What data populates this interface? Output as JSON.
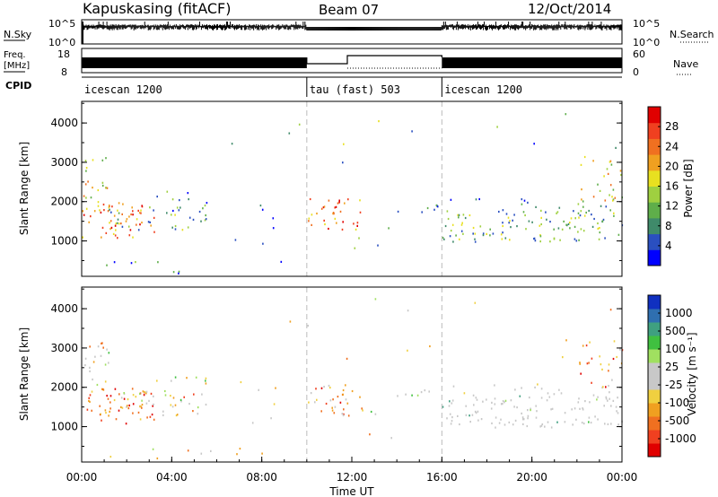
{
  "header": {
    "station": "Kapuskasing (fitACF)",
    "beam": "Beam 07",
    "date": "12/Oct/2014"
  },
  "top_panels": {
    "nsky": {
      "label": "N.Sky",
      "ticks": [
        "10^5",
        "10^0"
      ],
      "right_label": "N.Search",
      "right_ticks": [
        "10^5",
        "10^0"
      ]
    },
    "freq": {
      "label_line1": "Freq.",
      "label_line2": "[MHz]",
      "ticks": [
        "18",
        "8"
      ],
      "right_label": "Nave",
      "right_ticks": [
        "60",
        "0"
      ]
    },
    "cpid": {
      "label": "CPID",
      "segments": [
        {
          "label": "icescan 1200",
          "start_h": 0,
          "end_h": 10
        },
        {
          "label": "tau (fast) 503",
          "start_h": 10,
          "end_h": 16
        },
        {
          "label": "icescan 1200",
          "start_h": 16,
          "end_h": 24
        }
      ]
    }
  },
  "chart_data": [
    {
      "type": "heatmap",
      "name": "power",
      "ylabel": "Slant Range [km]",
      "xlim": [
        0,
        24
      ],
      "ylim": [
        100,
        4550
      ],
      "yticks": [
        1000,
        2000,
        3000,
        4000
      ],
      "colorbar": {
        "label": "Power [dB]",
        "ticks": [
          "4",
          "8",
          "12",
          "16",
          "20",
          "24",
          "28"
        ],
        "colors": [
          "#0000ff",
          "#2a4fc0",
          "#3f8a6a",
          "#5fae4a",
          "#9fd040",
          "#e8e020",
          "#f0a020",
          "#f07020",
          "#f04020",
          "#e00000"
        ]
      }
    },
    {
      "type": "heatmap",
      "name": "velocity",
      "ylabel": "Slant Range [km]",
      "xlabel": "Time UT",
      "xlim": [
        0,
        24
      ],
      "ylim": [
        100,
        4550
      ],
      "yticks": [
        1000,
        2000,
        3000,
        4000
      ],
      "xticks": [
        "00:00",
        "04:00",
        "08:00",
        "12:00",
        "16:00",
        "20:00",
        "00:00"
      ],
      "colorbar": {
        "label": "Velocity [m s⁻¹]",
        "ticks": [
          "1000",
          "500",
          "100",
          "25",
          "-25",
          "-100",
          "-500",
          "-1000"
        ],
        "colors": [
          "#1030c0",
          "#2f6fb0",
          "#3fa080",
          "#40c040",
          "#a0e060",
          "#c8c8c8",
          "#c8c8c8",
          "#f0d040",
          "#f0a020",
          "#f07020",
          "#f04020",
          "#e00000"
        ]
      }
    }
  ]
}
